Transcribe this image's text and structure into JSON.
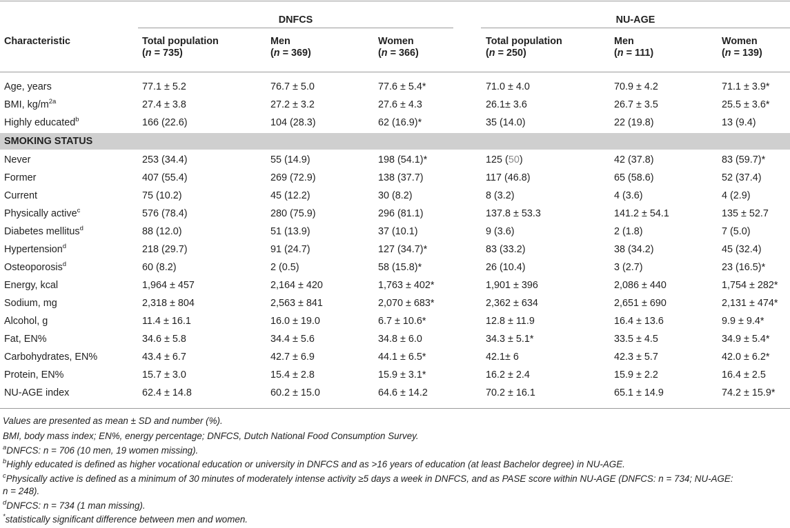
{
  "table": {
    "groups": [
      {
        "name": "DNFCS"
      },
      {
        "name": "NU-AGE"
      }
    ],
    "characteristic_label": "Characteristic",
    "columns": [
      {
        "label": "Total population",
        "n_prefix": "(",
        "n_var": "n",
        "n_value": " = 735)"
      },
      {
        "label": "Men",
        "n_prefix": "(",
        "n_var": "n",
        "n_value": " = 369)"
      },
      {
        "label": "Women",
        "n_prefix": "(",
        "n_var": "n",
        "n_value": " = 366)"
      },
      {
        "label": "Total population",
        "n_prefix": "(",
        "n_var": "n",
        "n_value": " = 250)"
      },
      {
        "label": "Men",
        "n_prefix": "(",
        "n_var": "n",
        "n_value": " = 111)"
      },
      {
        "label": "Women",
        "n_prefix": "(",
        "n_var": "n",
        "n_value": " = 139)"
      }
    ],
    "top_rows": [
      {
        "label": "Age, years",
        "sup": "",
        "values": [
          "77.1 ± 5.2",
          "76.7 ± 5.0",
          "77.6 ± 5.4*",
          "71.0 ± 4.0",
          "70.9 ± 4.2",
          "71.1 ± 3.9*"
        ]
      },
      {
        "label": "BMI, kg/m",
        "sup": "2a",
        "values": [
          "27.4 ± 3.8",
          "27.2 ± 3.2",
          "27.6 ± 4.3",
          "26.1± 3.6",
          "26.7 ± 3.5",
          "25.5 ± 3.6*"
        ]
      },
      {
        "label": "Highly educated",
        "sup": "b",
        "values": [
          "166 (22.6)",
          "104 (28.3)",
          "62 (16.9)*",
          "35 (14.0)",
          "22 (19.8)",
          "13 (9.4)"
        ]
      }
    ],
    "section_label": "SMOKING STATUS",
    "never_row": {
      "label": "Never",
      "values": [
        "253 (34.4)",
        "55 (14.9)",
        "198 (54.1)*"
      ],
      "nuage_total": {
        "prefix": "125 (",
        "muted": "50",
        "suffix": ")"
      },
      "values_rest": [
        "42 (37.8)",
        "83 (59.7)*"
      ]
    },
    "rows": [
      {
        "label": "Former",
        "sup": "",
        "values": [
          "407 (55.4)",
          "269 (72.9)",
          "138 (37.7)",
          "117 (46.8)",
          "65 (58.6)",
          "52 (37.4)"
        ]
      },
      {
        "label": "Current",
        "sup": "",
        "values": [
          "75 (10.2)",
          "45 (12.2)",
          "30 (8.2)",
          "8 (3.2)",
          "4 (3.6)",
          "4 (2.9)"
        ]
      },
      {
        "label": "Physically active",
        "sup": "c",
        "values": [
          "576 (78.4)",
          "280 (75.9)",
          "296 (81.1)",
          "137.8 ± 53.3",
          "141.2 ± 54.1",
          "135 ± 52.7"
        ]
      },
      {
        "label": "Diabetes mellitus",
        "sup": "d",
        "values": [
          "88 (12.0)",
          "51 (13.9)",
          "37 (10.1)",
          "9 (3.6)",
          "2 (1.8)",
          "7 (5.0)"
        ]
      },
      {
        "label": "Hypertension",
        "sup": "d",
        "values": [
          "218 (29.7)",
          "91 (24.7)",
          "127 (34.7)*",
          "83 (33.2)",
          "38 (34.2)",
          "45 (32.4)"
        ]
      },
      {
        "label": "Osteoporosis",
        "sup": "d",
        "values": [
          "60 (8.2)",
          "2 (0.5)",
          "58 (15.8)*",
          "26 (10.4)",
          "3 (2.7)",
          "23 (16.5)*"
        ]
      },
      {
        "label": "Energy, kcal",
        "sup": "",
        "values": [
          "1,964 ± 457",
          "2,164 ± 420",
          "1,763 ± 402*",
          "1,901 ± 396",
          "2,086 ± 440",
          "1,754 ± 282*"
        ]
      },
      {
        "label": "Sodium, mg",
        "sup": "",
        "values": [
          "2,318 ± 804",
          "2,563 ± 841",
          "2,070 ± 683*",
          "2,362 ± 634",
          "2,651 ± 690",
          "2,131 ± 474*"
        ]
      },
      {
        "label": "Alcohol, g",
        "sup": "",
        "values": [
          "11.4 ± 16.1",
          "16.0 ± 19.0",
          "6.7 ± 10.6*",
          "12.8 ± 11.9",
          "16.4 ± 13.6",
          "9.9 ± 9.4*"
        ]
      },
      {
        "label": "Fat, EN%",
        "sup": "",
        "values": [
          "34.6 ± 5.8",
          "34.4 ± 5.6",
          "34.8 ± 6.0",
          "34.3 ± 5.1*",
          "33.5 ± 4.5",
          "34.9 ± 5.4*"
        ]
      },
      {
        "label": "Carbohydrates, EN%",
        "sup": "",
        "values": [
          "43.4 ± 6.7",
          "42.7 ± 6.9",
          "44.1 ± 6.5*",
          "42.1± 6",
          "42.3 ± 5.7",
          "42.0 ± 6.2*"
        ]
      },
      {
        "label": "Protein, EN%",
        "sup": "",
        "values": [
          "15.7 ± 3.0",
          "15.4 ± 2.8",
          "15.9 ± 3.1*",
          "16.2 ± 2.4",
          "15.9 ± 2.2",
          "16.4 ± 2.5"
        ]
      },
      {
        "label": "NU-AGE index",
        "sup": "",
        "values": [
          "62.4 ± 14.8",
          "60.2 ± 15.0",
          "64.6 ± 14.2",
          "70.2 ± 16.1",
          "65.1 ± 14.9",
          "74.2 ± 15.9*"
        ]
      }
    ]
  },
  "footnotes": {
    "values": "Values are presented as mean ± SD and number (%).",
    "abbrev": "BMI, body mass index; EN%, energy percentage; DNFCS, Dutch National Food Consumption Survey.",
    "a": {
      "mark": "a",
      "text": "DNFCS: n = 706 (10 men, 19 women missing)."
    },
    "b": {
      "mark": "b",
      "text": "Highly educated is defined as higher vocational education or university in DNFCS and as >16 years of education (at least Bachelor degree) in NU-AGE."
    },
    "c": {
      "mark": "c",
      "text": "Physically active is defined as a minimum of 30 minutes of moderately intense activity ≥5 days a week in DNFCS, and as PASE score within NU-AGE (DNFCS: n = 734; NU-AGE:",
      "text2": "n = 248)."
    },
    "d": {
      "mark": "d",
      "text": "DNFCS: n = 734 (1 man missing)."
    },
    "star": {
      "mark": "*",
      "text": "statistically significant difference between men and women."
    }
  }
}
